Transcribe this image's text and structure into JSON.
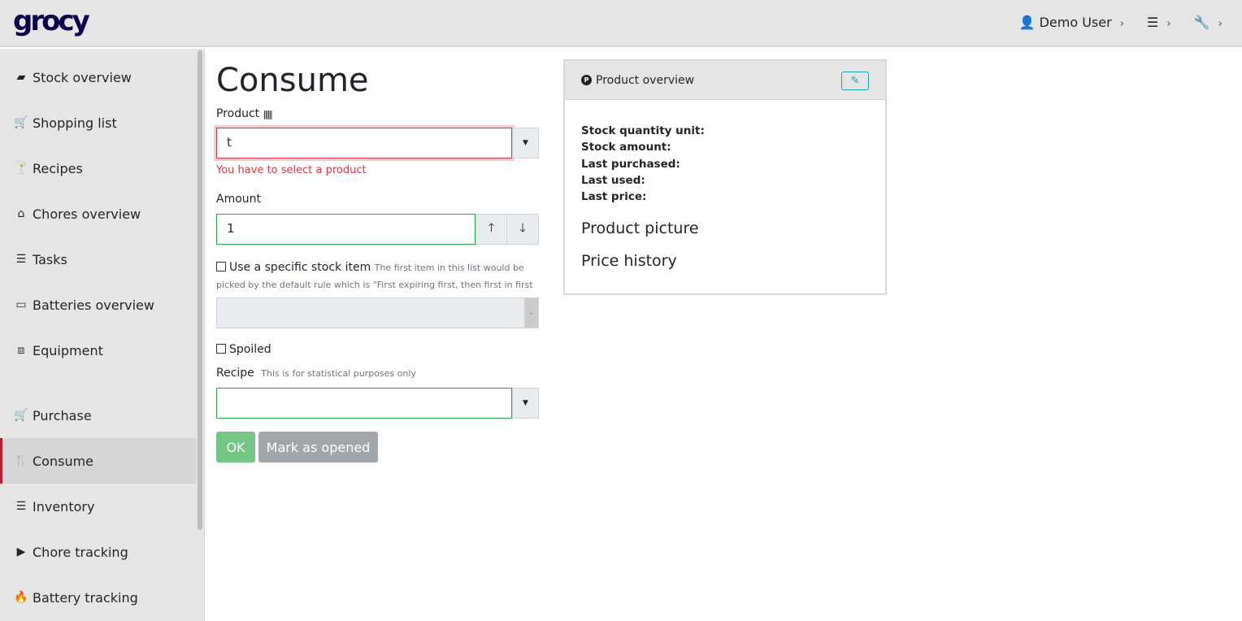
{
  "header": {
    "logo": "grocy",
    "user": "Demo User"
  },
  "sidebar": {
    "items": [
      {
        "label": "Stock overview",
        "icon": "box-icon"
      },
      {
        "label": "Shopping list",
        "icon": "cart-icon"
      },
      {
        "label": "Recipes",
        "icon": "cocktail-icon"
      },
      {
        "label": "Chores overview",
        "icon": "home-icon"
      },
      {
        "label": "Tasks",
        "icon": "tasks-icon"
      },
      {
        "label": "Batteries overview",
        "icon": "battery-icon"
      },
      {
        "label": "Equipment",
        "icon": "toolbox-icon"
      },
      {
        "label": "Purchase",
        "icon": "cart-icon"
      },
      {
        "label": "Consume",
        "icon": "utensils-icon",
        "active": true
      },
      {
        "label": "Inventory",
        "icon": "list-icon"
      },
      {
        "label": "Chore tracking",
        "icon": "play-icon"
      },
      {
        "label": "Battery tracking",
        "icon": "fire-icon"
      }
    ]
  },
  "form": {
    "title": "Consume",
    "product_label": "Product",
    "product_value": "t",
    "product_error": "You have to select a product",
    "amount_label": "Amount",
    "amount_value": "1",
    "specific_label": "Use a specific stock item",
    "specific_hint": "The first item in this list would be picked by the default rule which is \"First expiring first, then first in first out\"",
    "spoiled_label": "Spoiled",
    "recipe_label": "Recipe",
    "recipe_hint": "This is for statistical purposes only",
    "ok": "OK",
    "mark_opened": "Mark as opened"
  },
  "card": {
    "title": "Product overview",
    "fields": [
      "Stock quantity unit:",
      "Stock amount:",
      "Last purchased:",
      "Last used:",
      "Last price:"
    ],
    "picture": "Product picture",
    "history": "Price history"
  },
  "colors": {
    "error": "#dc3545",
    "success": "#28a745",
    "active_marker": "#b71c2c"
  }
}
